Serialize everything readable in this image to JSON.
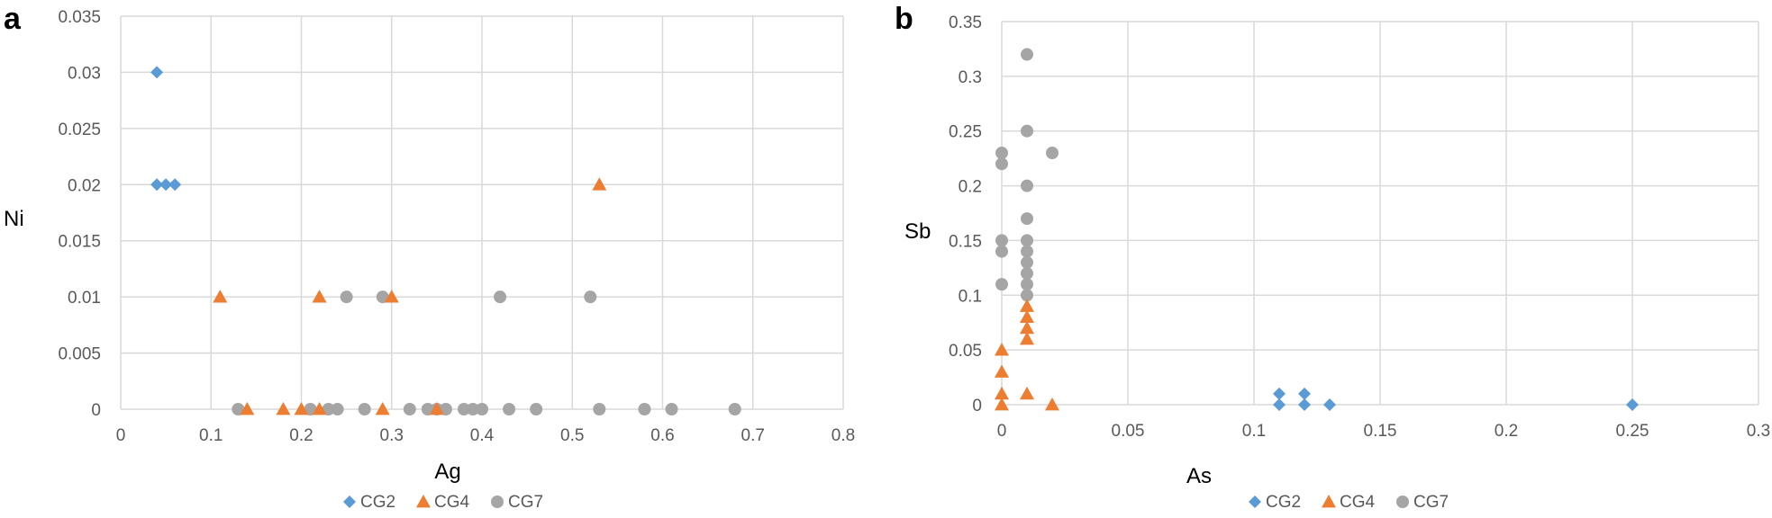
{
  "colors": {
    "CG2": "#5B9BD5",
    "CG4": "#ED7D31",
    "CG7": "#A5A5A5",
    "grid": "#D9D9D9"
  },
  "chart_data": [
    {
      "type": "scatter",
      "panel_label": "a",
      "title": "",
      "xlabel": "Ag",
      "ylabel": "Ni",
      "xlim": [
        0,
        0.8
      ],
      "ylim": [
        0,
        0.035
      ],
      "xticks": [
        0,
        0.1,
        0.2,
        0.3,
        0.4,
        0.5,
        0.6,
        0.7,
        0.8
      ],
      "yticks": [
        0,
        0.005,
        0.01,
        0.015,
        0.02,
        0.025,
        0.03,
        0.035
      ],
      "xtick_labels": [
        "0",
        "0.1",
        "0.2",
        "0.3",
        "0.4",
        "0.5",
        "0.6",
        "0.7",
        "0.8"
      ],
      "ytick_labels": [
        "0",
        "0.005",
        "0.01",
        "0.015",
        "0.02",
        "0.025",
        "0.03",
        "0.035"
      ],
      "grid": true,
      "legend_position": "bottom-center",
      "series": [
        {
          "name": "CG2",
          "marker": "diamond",
          "x": [
            0.04,
            0.04,
            0.05,
            0.06
          ],
          "y": [
            0.03,
            0.02,
            0.02,
            0.02
          ]
        },
        {
          "name": "CG4",
          "marker": "triangle",
          "x": [
            0.53,
            0.11,
            0.22,
            0.3,
            0.14,
            0.18,
            0.2,
            0.22,
            0.29,
            0.35
          ],
          "y": [
            0.02,
            0.01,
            0.01,
            0.01,
            0,
            0,
            0,
            0,
            0,
            0
          ]
        },
        {
          "name": "CG7",
          "marker": "circle",
          "x": [
            0.25,
            0.29,
            0.42,
            0.52,
            0.13,
            0.21,
            0.23,
            0.24,
            0.27,
            0.32,
            0.34,
            0.35,
            0.36,
            0.38,
            0.39,
            0.4,
            0.43,
            0.46,
            0.53,
            0.58,
            0.61,
            0.68
          ],
          "y": [
            0.01,
            0.01,
            0.01,
            0.01,
            0,
            0,
            0,
            0,
            0,
            0,
            0,
            0,
            0,
            0,
            0,
            0,
            0,
            0,
            0,
            0,
            0,
            0
          ]
        }
      ]
    },
    {
      "type": "scatter",
      "panel_label": "b",
      "title": "",
      "xlabel": "As",
      "ylabel": "Sb",
      "xlim": [
        0,
        0.3
      ],
      "ylim": [
        0,
        0.35
      ],
      "xticks": [
        0,
        0.05,
        0.1,
        0.15,
        0.2,
        0.25,
        0.3
      ],
      "yticks": [
        0,
        0.05,
        0.1,
        0.15,
        0.2,
        0.25,
        0.3,
        0.35
      ],
      "xtick_labels": [
        "0",
        "0.05",
        "0.1",
        "0.15",
        "0.2",
        "0.25",
        "0.3"
      ],
      "ytick_labels": [
        "0",
        "0.05",
        "0.1",
        "0.15",
        "0.2",
        "0.25",
        "0.3",
        "0.35"
      ],
      "grid": true,
      "legend_position": "bottom-center",
      "series": [
        {
          "name": "CG2",
          "marker": "diamond",
          "x": [
            0.11,
            0.12,
            0.11,
            0.12,
            0.13,
            0.25
          ],
          "y": [
            0.01,
            0.01,
            0,
            0,
            0,
            0
          ]
        },
        {
          "name": "CG4",
          "marker": "triangle",
          "x": [
            0.01,
            0.01,
            0.01,
            0.01,
            0,
            0,
            0,
            0,
            0.01,
            0.02
          ],
          "y": [
            0.09,
            0.08,
            0.07,
            0.06,
            0.05,
            0.03,
            0.01,
            0,
            0.01,
            0
          ]
        },
        {
          "name": "CG7",
          "marker": "circle",
          "x": [
            0.01,
            0.01,
            0,
            0,
            0.02,
            0.01,
            0.01,
            0,
            0,
            0.01,
            0.01,
            0.01,
            0.01,
            0.01,
            0,
            0.01
          ],
          "y": [
            0.32,
            0.25,
            0.23,
            0.22,
            0.23,
            0.2,
            0.17,
            0.15,
            0.14,
            0.15,
            0.14,
            0.13,
            0.12,
            0.11,
            0.11,
            0.1
          ]
        }
      ]
    }
  ]
}
